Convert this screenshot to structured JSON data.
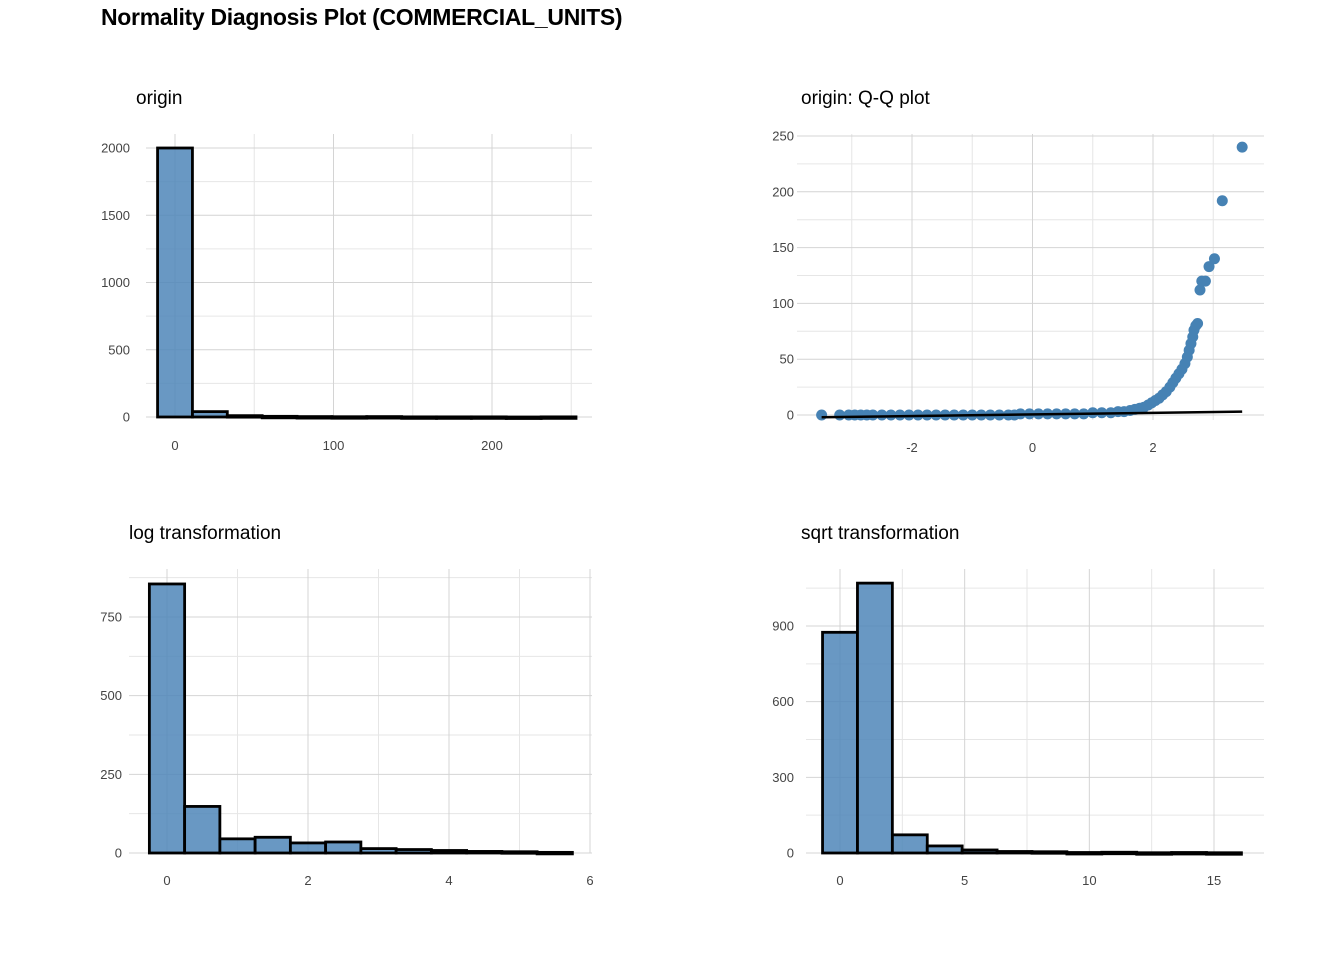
{
  "title": "Normality Diagnosis Plot (COMMERCIAL_UNITS)",
  "colors": {
    "fill": "#4f86b9",
    "point": "#4682b4",
    "outline": "#000000",
    "grid": "#d4d4d4"
  },
  "chart_data": [
    {
      "id": "origin",
      "type": "bar",
      "title": "origin",
      "xlim": [
        -15,
        252
      ],
      "ylim": [
        0,
        2000
      ],
      "x_ticks": [
        0,
        100,
        200
      ],
      "y_ticks": [
        0,
        500,
        1000,
        1500,
        2000
      ],
      "bin_width": 22,
      "bin_centers": [
        0,
        22,
        44,
        66,
        88,
        110,
        132,
        154,
        176,
        198,
        220,
        242
      ],
      "values": [
        2000,
        40,
        10,
        5,
        3,
        2,
        3,
        1,
        1,
        1,
        0,
        1
      ],
      "grid": true
    },
    {
      "id": "qq",
      "type": "scatter",
      "title": "origin: Q-Q plot",
      "xlim": [
        -3.8,
        3.8
      ],
      "ylim": [
        0,
        250
      ],
      "x_ticks": [
        -2,
        0,
        2
      ],
      "y_ticks": [
        0,
        50,
        100,
        150,
        200,
        250
      ],
      "points": [
        [
          -3.5,
          0
        ],
        [
          -3.2,
          0
        ],
        [
          -3.05,
          0
        ],
        [
          -2.95,
          0
        ],
        [
          -2.85,
          0
        ],
        [
          -2.75,
          0
        ],
        [
          -2.65,
          0
        ],
        [
          -2.5,
          0
        ],
        [
          -2.35,
          0
        ],
        [
          -2.2,
          0
        ],
        [
          -2.05,
          0
        ],
        [
          -1.9,
          0
        ],
        [
          -1.75,
          0
        ],
        [
          -1.6,
          0
        ],
        [
          -1.45,
          0
        ],
        [
          -1.3,
          0
        ],
        [
          -1.15,
          0
        ],
        [
          -1.0,
          0
        ],
        [
          -0.85,
          0
        ],
        [
          -0.7,
          0
        ],
        [
          -0.55,
          0
        ],
        [
          -0.4,
          0
        ],
        [
          -0.3,
          0
        ],
        [
          -0.2,
          1
        ],
        [
          -0.05,
          1
        ],
        [
          0.1,
          1
        ],
        [
          0.25,
          1
        ],
        [
          0.4,
          1
        ],
        [
          0.55,
          1
        ],
        [
          0.7,
          1
        ],
        [
          0.85,
          1
        ],
        [
          1.0,
          2
        ],
        [
          1.15,
          2
        ],
        [
          1.3,
          2
        ],
        [
          1.42,
          3
        ],
        [
          1.52,
          3
        ],
        [
          1.62,
          4
        ],
        [
          1.7,
          5
        ],
        [
          1.78,
          6
        ],
        [
          1.85,
          7
        ],
        [
          1.92,
          9
        ],
        [
          1.98,
          11
        ],
        [
          2.04,
          13
        ],
        [
          2.1,
          15
        ],
        [
          2.16,
          18
        ],
        [
          2.22,
          21
        ],
        [
          2.28,
          25
        ],
        [
          2.33,
          29
        ],
        [
          2.38,
          33
        ],
        [
          2.43,
          37
        ],
        [
          2.48,
          41
        ],
        [
          2.53,
          46
        ],
        [
          2.57,
          52
        ],
        [
          2.6,
          58
        ],
        [
          2.63,
          64
        ],
        [
          2.66,
          70
        ],
        [
          2.68,
          76
        ],
        [
          2.71,
          80
        ],
        [
          2.74,
          82
        ],
        [
          2.78,
          112
        ],
        [
          2.81,
          120
        ],
        [
          2.87,
          120
        ],
        [
          2.93,
          133
        ],
        [
          3.02,
          140
        ],
        [
          3.15,
          192
        ],
        [
          3.48,
          240
        ]
      ],
      "reference_line": {
        "x": [
          -3.5,
          3.48
        ],
        "y": [
          -2,
          3
        ]
      },
      "grid": true
    },
    {
      "id": "log",
      "type": "bar",
      "title": "log transformation",
      "xlim": [
        -0.55,
        6.0
      ],
      "ylim": [
        0,
        860
      ],
      "x_ticks": [
        0,
        2,
        4,
        6
      ],
      "y_ticks": [
        0,
        250,
        500,
        750
      ],
      "bin_width": 0.5,
      "bin_centers": [
        0,
        0.5,
        1.0,
        1.5,
        2.0,
        2.5,
        3.0,
        3.5,
        4.0,
        4.5,
        5.0,
        5.5
      ],
      "values": [
        855,
        148,
        45,
        50,
        32,
        35,
        14,
        11,
        8,
        5,
        4,
        2
      ],
      "grid": true
    },
    {
      "id": "sqrt",
      "type": "bar",
      "title": "sqrt transformation",
      "xlim": [
        -1.5,
        16.9
      ],
      "ylim": [
        0,
        1070
      ],
      "x_ticks": [
        0,
        5,
        10,
        15
      ],
      "y_ticks": [
        0,
        300,
        600,
        900
      ],
      "bin_width": 1.4,
      "bin_centers": [
        0,
        1.4,
        2.8,
        4.2,
        5.6,
        7.0,
        8.4,
        9.8,
        11.2,
        12.6,
        14.0,
        15.4
      ],
      "values": [
        875,
        1070,
        72,
        28,
        12,
        6,
        5,
        2,
        3,
        1,
        2,
        1
      ],
      "grid": true
    }
  ]
}
